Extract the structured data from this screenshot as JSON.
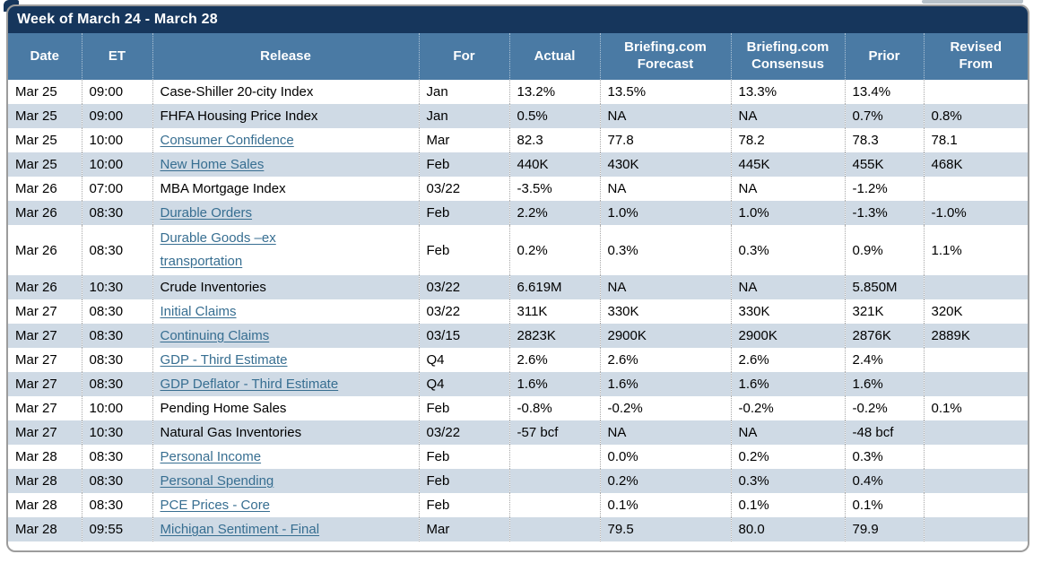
{
  "title_bar": {
    "label": "Week of March 24 - March 28"
  },
  "colors": {
    "title_bar_bg": "#16365c",
    "header_bg": "#4a7aa4",
    "alt_row_bg": "#cfdae5",
    "link_color": "#376e91",
    "frame_border": "#9c9c9c"
  },
  "table": {
    "columns": [
      {
        "label": "Date"
      },
      {
        "label": "ET"
      },
      {
        "label": "Release"
      },
      {
        "label": "For"
      },
      {
        "label": "Actual"
      },
      {
        "label": "Briefing.com Forecast"
      },
      {
        "label": "Briefing.com Consensus"
      },
      {
        "label": "Prior"
      },
      {
        "label": "Revised From"
      }
    ],
    "rows": [
      {
        "date": "Mar 25",
        "et": "09:00",
        "release": "Case-Shiller 20-city Index",
        "link": false,
        "for": "Jan",
        "actual": "13.2%",
        "forecast": "13.5%",
        "consensus": "13.3%",
        "prior": "13.4%",
        "revised": ""
      },
      {
        "date": "Mar 25",
        "et": "09:00",
        "release": "FHFA Housing Price Index",
        "link": false,
        "for": "Jan",
        "actual": "0.5%",
        "forecast": "NA",
        "consensus": "NA",
        "prior": "0.7%",
        "revised": "0.8%"
      },
      {
        "date": "Mar 25",
        "et": "10:00",
        "release": "Consumer Confidence",
        "link": true,
        "for": "Mar",
        "actual": "82.3",
        "forecast": "77.8",
        "consensus": "78.2",
        "prior": "78.3",
        "revised": "78.1"
      },
      {
        "date": "Mar 25",
        "et": "10:00",
        "release": "New Home Sales",
        "link": true,
        "for": "Feb",
        "actual": "440K",
        "forecast": "430K",
        "consensus": "445K",
        "prior": "455K",
        "revised": "468K"
      },
      {
        "date": "Mar 26",
        "et": "07:00",
        "release": "MBA Mortgage Index",
        "link": false,
        "for": "03/22",
        "actual": "-3.5%",
        "forecast": "NA",
        "consensus": "NA",
        "prior": "-1.2%",
        "revised": ""
      },
      {
        "date": "Mar 26",
        "et": "08:30",
        "release": "Durable Orders",
        "link": true,
        "for": "Feb",
        "actual": "2.2%",
        "forecast": "1.0%",
        "consensus": "1.0%",
        "prior": "-1.3%",
        "revised": "-1.0%"
      },
      {
        "date": "Mar 26",
        "et": "08:30",
        "release": "Durable Goods –ex transportation",
        "link": true,
        "tall": true,
        "for": "Feb",
        "actual": "0.2%",
        "forecast": "0.3%",
        "consensus": "0.3%",
        "prior": "0.9%",
        "revised": "1.1%"
      },
      {
        "date": "Mar 26",
        "et": "10:30",
        "release": "Crude Inventories",
        "link": false,
        "for": "03/22",
        "actual": "6.619M",
        "forecast": "NA",
        "consensus": "NA",
        "prior": "5.850M",
        "revised": ""
      },
      {
        "date": "Mar 27",
        "et": "08:30",
        "release": "Initial Claims",
        "link": true,
        "for": "03/22",
        "actual": "311K",
        "forecast": "330K",
        "consensus": "330K",
        "prior": "321K",
        "revised": "320K"
      },
      {
        "date": "Mar 27",
        "et": "08:30",
        "release": "Continuing Claims",
        "link": true,
        "for": "03/15",
        "actual": "2823K",
        "forecast": "2900K",
        "consensus": "2900K",
        "prior": "2876K",
        "revised": "2889K"
      },
      {
        "date": "Mar 27",
        "et": "08:30",
        "release": "GDP - Third Estimate",
        "link": true,
        "for": "Q4",
        "actual": "2.6%",
        "forecast": "2.6%",
        "consensus": "2.6%",
        "prior": "2.4%",
        "revised": ""
      },
      {
        "date": "Mar 27",
        "et": "08:30",
        "release": "GDP Deflator - Third Estimate",
        "link": true,
        "for": "Q4",
        "actual": "1.6%",
        "forecast": "1.6%",
        "consensus": "1.6%",
        "prior": "1.6%",
        "revised": ""
      },
      {
        "date": "Mar 27",
        "et": "10:00",
        "release": "Pending Home Sales",
        "link": false,
        "for": "Feb",
        "actual": "-0.8%",
        "forecast": "-0.2%",
        "consensus": "-0.2%",
        "prior": "-0.2%",
        "revised": "0.1%"
      },
      {
        "date": "Mar 27",
        "et": "10:30",
        "release": "Natural Gas Inventories",
        "link": false,
        "for": "03/22",
        "actual": "-57 bcf",
        "forecast": "NA",
        "consensus": "NA",
        "prior": "-48 bcf",
        "revised": ""
      },
      {
        "date": "Mar 28",
        "et": "08:30",
        "release": "Personal Income",
        "link": true,
        "for": "Feb",
        "actual": "",
        "forecast": "0.0%",
        "consensus": "0.2%",
        "prior": "0.3%",
        "revised": ""
      },
      {
        "date": "Mar 28",
        "et": "08:30",
        "release": "Personal Spending",
        "link": true,
        "for": "Feb",
        "actual": "",
        "forecast": "0.2%",
        "consensus": "0.3%",
        "prior": "0.4%",
        "revised": ""
      },
      {
        "date": "Mar 28",
        "et": "08:30",
        "release": "PCE Prices - Core",
        "link": true,
        "for": "Feb",
        "actual": "",
        "forecast": "0.1%",
        "consensus": "0.1%",
        "prior": "0.1%",
        "revised": ""
      },
      {
        "date": "Mar 28",
        "et": "09:55",
        "release": "Michigan Sentiment - Final",
        "link": true,
        "for": "Mar",
        "actual": "",
        "forecast": "79.5",
        "consensus": "80.0",
        "prior": "79.9",
        "revised": ""
      }
    ]
  }
}
